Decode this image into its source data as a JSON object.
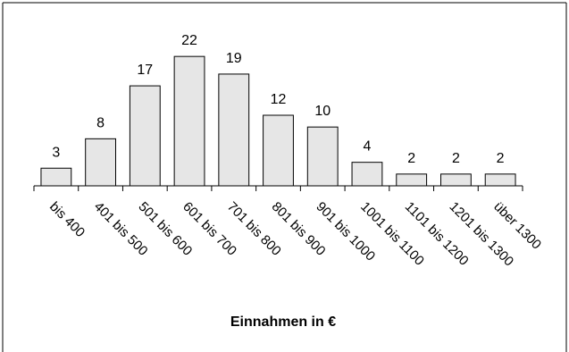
{
  "chart_data": {
    "type": "bar",
    "categories": [
      "bis 400",
      "401 bis 500",
      "501 bis 600",
      "601 bis 700",
      "701 bis 800",
      "801 bis 900",
      "901 bis 1000",
      "1001 bis 1100",
      "1101 bis 1200",
      "1201 bis 1300",
      "über 1300"
    ],
    "values": [
      3,
      8,
      17,
      22,
      19,
      12,
      10,
      4,
      2,
      2,
      2
    ],
    "data_labels": [
      "3",
      "8",
      "17",
      "22",
      "19",
      "12",
      "10",
      "4",
      "2",
      "2",
      "2"
    ],
    "title": "",
    "xlabel": "Einnahmen in €",
    "ylabel": "",
    "ylim": [
      0,
      24
    ],
    "grid": false,
    "legend": "none",
    "colors": {
      "bar_fill": "#e6e6e6",
      "bar_stroke": "#000000",
      "frame": "#000000"
    }
  }
}
